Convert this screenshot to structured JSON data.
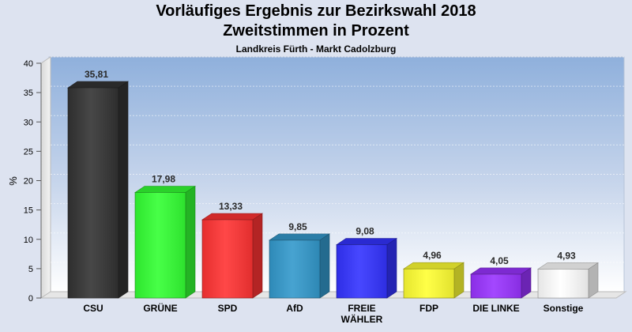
{
  "header": {
    "title_line1": "Vorläufiges Ergebnis zur Bezirkswahl 2018",
    "title_line2": "Zweitstimmen in Prozent",
    "subtitle": "Landkreis Fürth - Markt Cadolzburg"
  },
  "chart_data": {
    "type": "bar",
    "title": "Vorläufiges Ergebnis zur Bezirkswahl 2018 – Zweitstimmen in Prozent",
    "subtitle": "Landkreis Fürth - Markt Cadolzburg",
    "xlabel": "",
    "ylabel": "%",
    "ylim": [
      0,
      40
    ],
    "yticks": [
      0,
      5,
      10,
      15,
      20,
      25,
      30,
      35,
      40
    ],
    "grid": true,
    "categories": [
      [
        "CSU"
      ],
      [
        "GRÜNE"
      ],
      [
        "SPD"
      ],
      [
        "AfD"
      ],
      [
        "FREIE",
        "WÄHLER"
      ],
      [
        "FDP"
      ],
      [
        "DIE LINKE"
      ],
      [
        "Sonstige"
      ]
    ],
    "values": [
      35.81,
      17.98,
      13.33,
      9.85,
      9.08,
      4.96,
      4.05,
      4.93
    ],
    "labels": [
      "35,81",
      "17,98",
      "13,33",
      "9,85",
      "9,08",
      "4,96",
      "4,05",
      "4,93"
    ],
    "colors": [
      "#333333",
      "#33ff33",
      "#ff3333",
      "#3399cc",
      "#3333ff",
      "#ffff33",
      "#9933ff",
      "#ffffff"
    ]
  }
}
